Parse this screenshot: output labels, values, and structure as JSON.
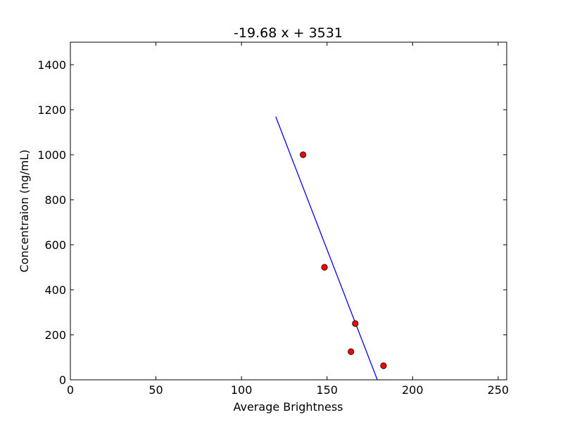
{
  "chart_data": {
    "type": "scatter",
    "title": "-19.68 x + 3531",
    "xlabel": "Average Brightness",
    "ylabel": "Concentraion (ng/mL)",
    "xlim": [
      0,
      255
    ],
    "ylim": [
      0,
      1500
    ],
    "xticks": [
      "0",
      "50",
      "100",
      "150",
      "200",
      "250"
    ],
    "yticks": [
      "0",
      "200",
      "400",
      "600",
      "800",
      "1000",
      "1200",
      "1400"
    ],
    "grid": false,
    "colors": {
      "points": "#ff0000",
      "point_edge": "#000000",
      "fit_line": "#0000ff"
    },
    "series": [
      {
        "kind": "scatter",
        "x": [
          136,
          148.5,
          164,
          166.5,
          183
        ],
        "y": [
          1000,
          500,
          125,
          250,
          62.5
        ]
      },
      {
        "kind": "line",
        "slope": -19.68,
        "intercept": 3531,
        "x": [
          120,
          179.4
        ],
        "y": [
          1169.4,
          0
        ]
      }
    ]
  }
}
